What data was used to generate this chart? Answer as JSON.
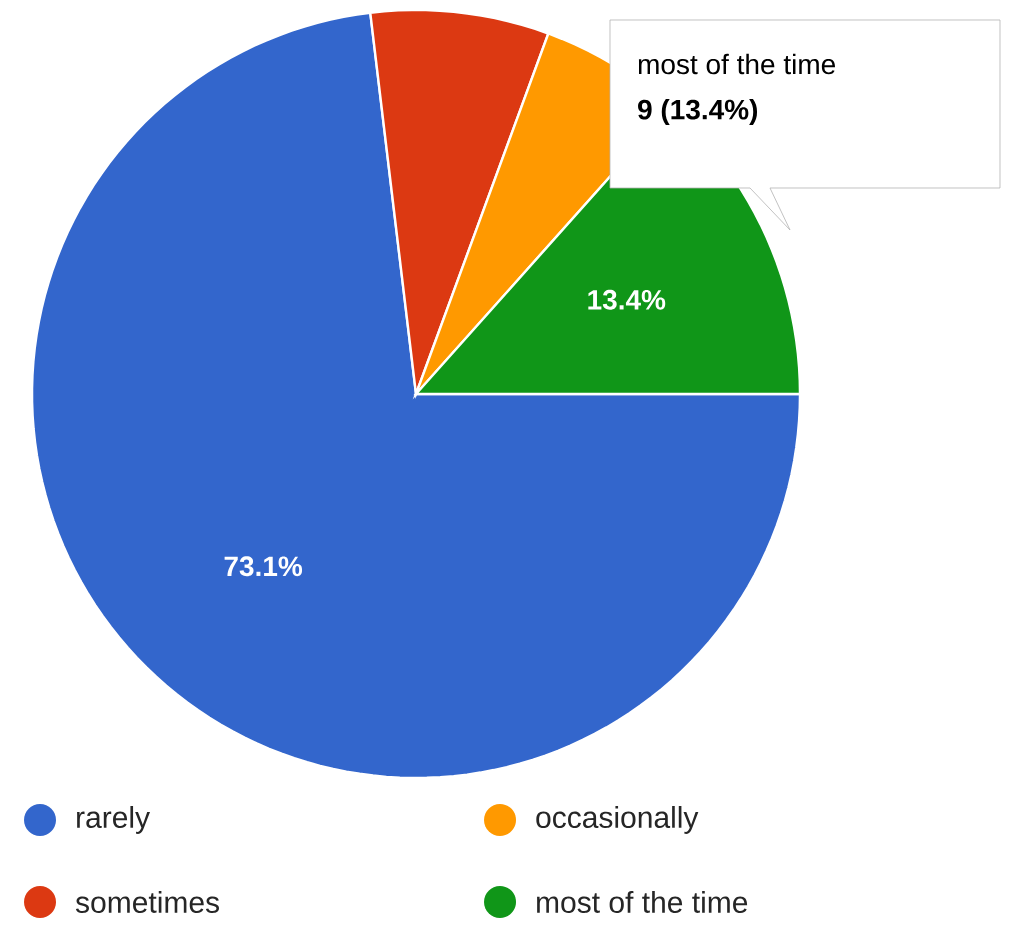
{
  "chart_data": {
    "type": "pie",
    "categories": [
      "rarely",
      "sometimes",
      "occasionally",
      "most of the time"
    ],
    "values": [
      73.1,
      7.5,
      6.0,
      13.4
    ],
    "colors": [
      "#3366cc",
      "#dc3912",
      "#ff9900",
      "#109618"
    ],
    "value_labels": [
      "73.1%",
      null,
      null,
      "13.4%"
    ],
    "annotations": [
      "most of the time",
      "9 (13.4%)"
    ],
    "legend": "bottom"
  }
}
